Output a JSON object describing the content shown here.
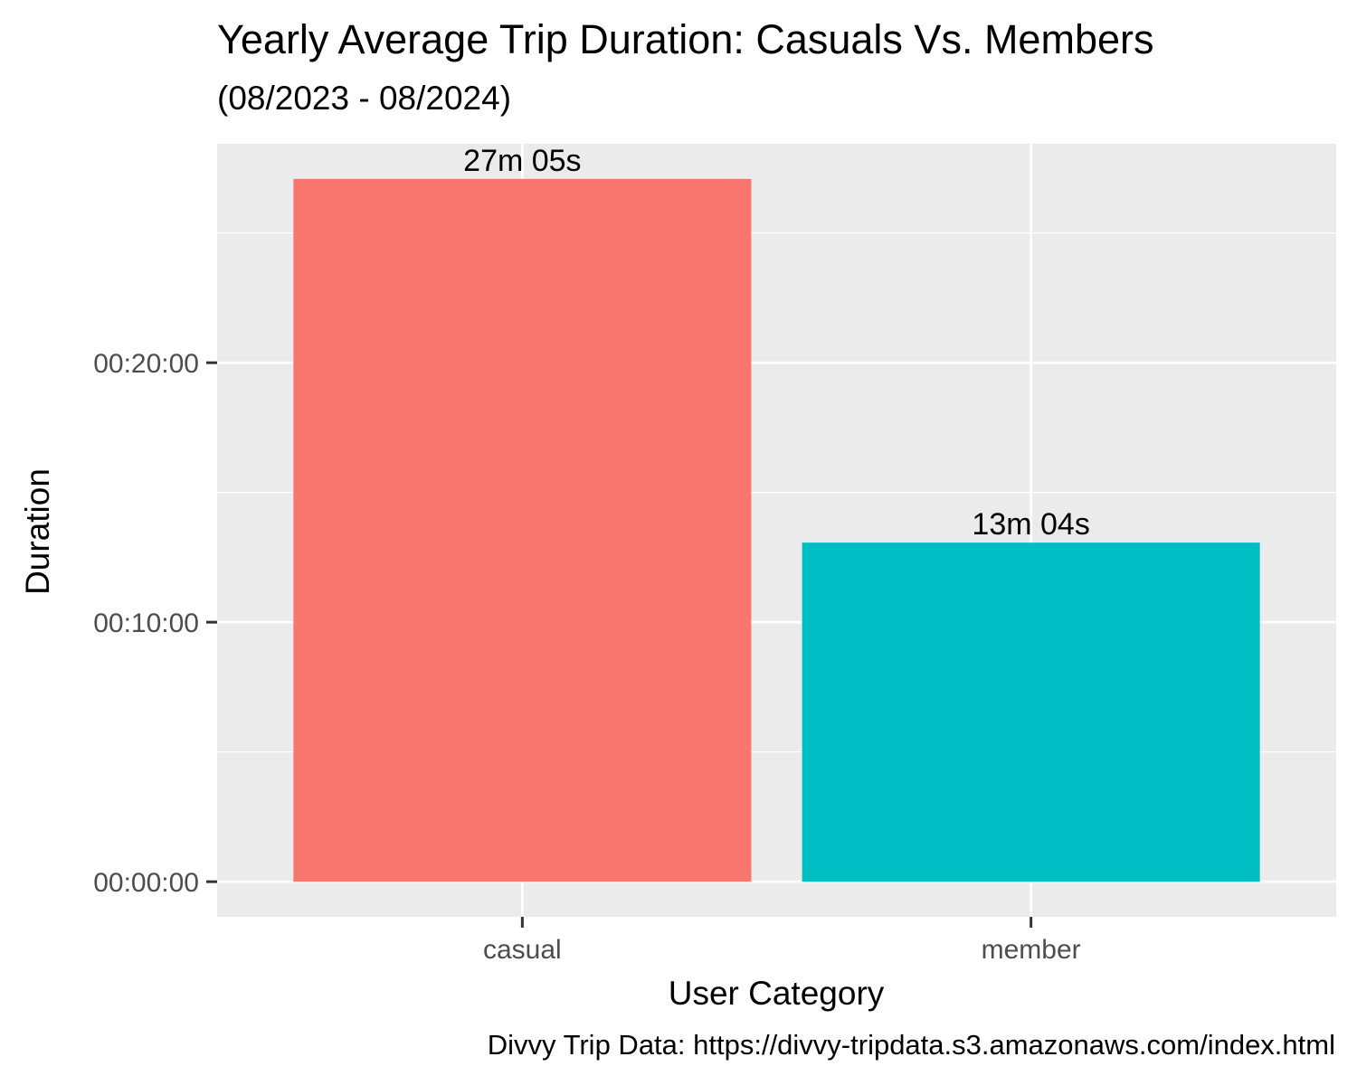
{
  "chart_data": {
    "type": "bar",
    "title": "Yearly Average Trip Duration: Casuals Vs. Members",
    "subtitle": "(08/2023 - 08/2024)",
    "caption": "Divvy Trip Data: https://divvy-tripdata.s3.amazonaws.com/index.html",
    "xlabel": "User Category",
    "ylabel": "Duration",
    "categories": [
      "casual",
      "member"
    ],
    "values_seconds": [
      1625,
      784
    ],
    "value_labels": [
      "27m 05s",
      "13m 04s"
    ],
    "colors": [
      "#F8766D",
      "#00BFC4"
    ],
    "y_ticks_seconds": [
      0,
      600,
      1200
    ],
    "y_tick_labels": [
      "00:00:00",
      "00:10:00",
      "00:20:00"
    ],
    "ylim_seconds": [
      -81.25,
      1706.25
    ],
    "grid": true,
    "legend": "none",
    "panel_background": "#EBEBEB",
    "grid_color": "#FFFFFF"
  }
}
